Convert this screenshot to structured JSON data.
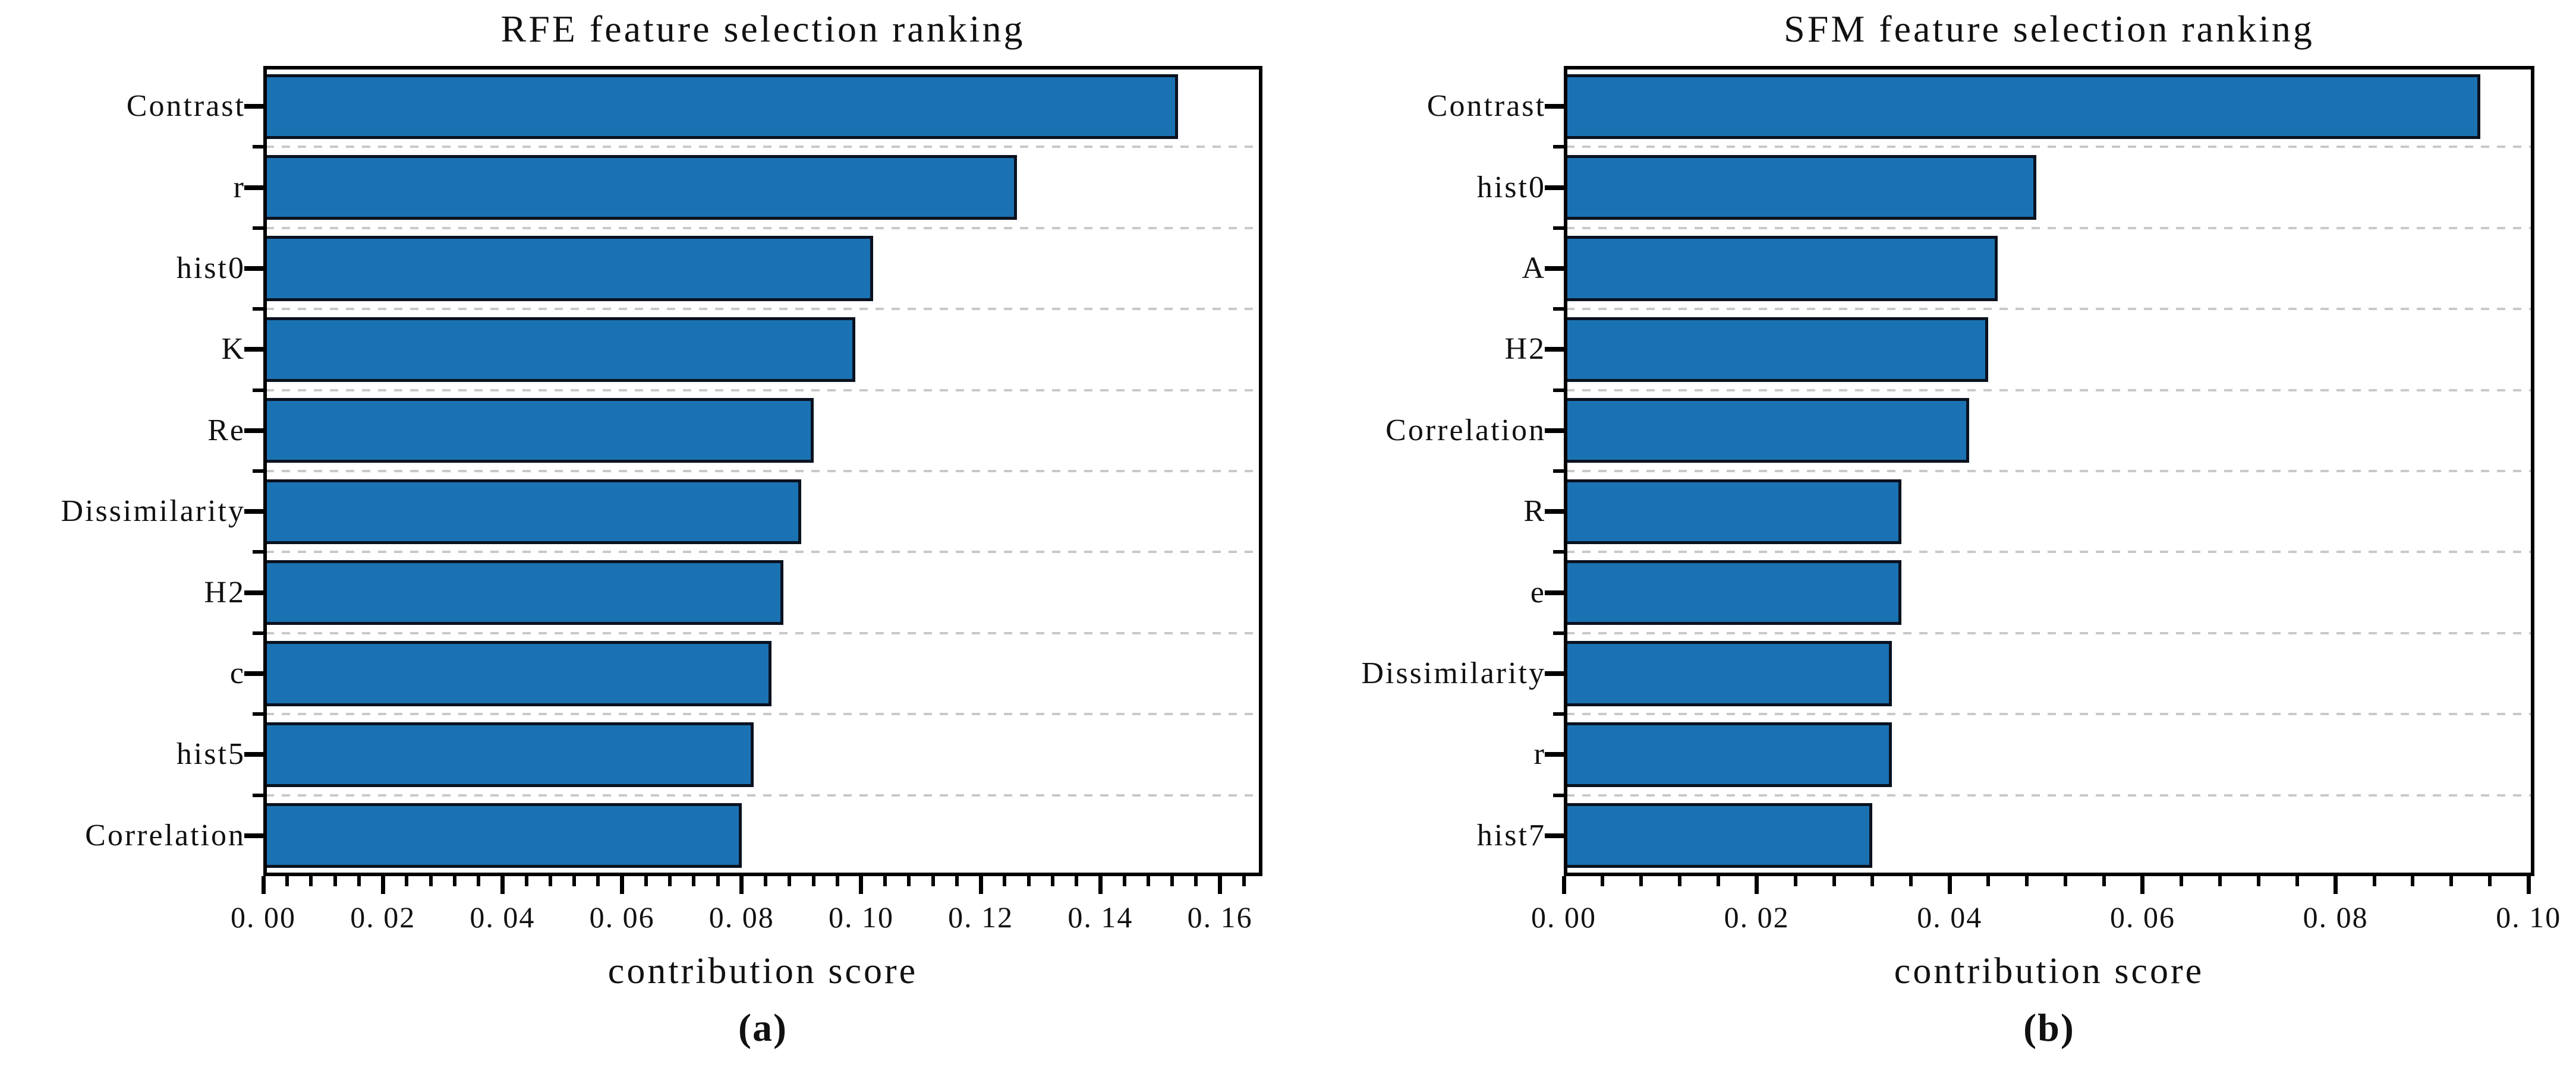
{
  "style": {
    "background": "#ffffff",
    "bar_fill": "#1b72b2",
    "bar_edge": "#0a1220",
    "grid_color": "#c9c9c9",
    "axis_color": "#000000",
    "text_color": "#111111"
  },
  "chart_data": [
    {
      "type": "bar",
      "orientation": "horizontal",
      "title": "RFE feature selection ranking",
      "xlabel": "contribution score",
      "ylabel": "",
      "caption": "(a)",
      "categories": [
        "Contrast",
        "r",
        "hist0",
        "K",
        "Re",
        "Dissimilarity",
        "H2",
        "c",
        "hist5",
        "Correlation"
      ],
      "values": [
        0.153,
        0.126,
        0.102,
        0.099,
        0.092,
        0.09,
        0.087,
        0.085,
        0.082,
        0.08
      ],
      "xlim": [
        0,
        0.1671
      ],
      "xtick_values": [
        0.0,
        0.02,
        0.04,
        0.06,
        0.08,
        0.1,
        0.12,
        0.14,
        0.16
      ],
      "xtick_labels": [
        "0. 00",
        "0. 02",
        "0. 04",
        "0. 06",
        "0. 08",
        "0. 10",
        "0. 12",
        "0. 14",
        "0. 16"
      ],
      "minor_tick_step": 0.004,
      "bar_height_frac": 0.8,
      "grid": "dashed horizontal gridlines between bars, minor ticks on both axes, full box spines",
      "legend": "none"
    },
    {
      "type": "bar",
      "orientation": "horizontal",
      "title": "SFM feature selection ranking",
      "xlabel": "contribution score",
      "ylabel": "",
      "caption": "(b)",
      "categories": [
        "Contrast",
        "hist0",
        "A",
        "H2",
        "Correlation",
        "R",
        "e",
        "Dissimilarity",
        "r",
        "hist7"
      ],
      "values": [
        0.095,
        0.049,
        0.045,
        0.044,
        0.042,
        0.035,
        0.035,
        0.034,
        0.034,
        0.032
      ],
      "xlim": [
        0,
        0.1006
      ],
      "xtick_values": [
        0.0,
        0.02,
        0.04,
        0.06,
        0.08,
        0.1
      ],
      "xtick_labels": [
        "0. 00",
        "0. 02",
        "0. 04",
        "0. 06",
        "0. 08",
        "0. 10"
      ],
      "minor_tick_step": 0.004,
      "bar_height_frac": 0.8,
      "grid": "dashed horizontal gridlines between bars, minor ticks on both axes, full box spines",
      "legend": "none"
    }
  ]
}
